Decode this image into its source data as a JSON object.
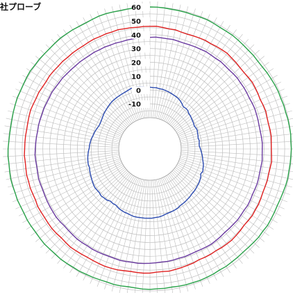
{
  "chart_data": {
    "type": "polar-line",
    "title": "社プローブ",
    "radial_ticks": [
      60,
      50,
      40,
      30,
      20,
      10,
      0,
      -10
    ],
    "radial_range": [
      -20,
      60
    ],
    "angular_divisions": 120,
    "series": [
      {
        "color": "#2aa24a",
        "values": [
          60,
          60,
          59.8,
          59.5,
          59.5,
          59.4,
          59.2,
          59.4,
          59.5,
          59.2,
          58.8,
          58.8,
          59,
          58.7,
          58.4,
          58.2,
          58.3,
          58,
          58.1,
          58.5,
          58.7,
          59,
          59.2,
          59,
          59.3,
          59.2,
          59.6,
          59.7,
          59.9,
          59.6,
          59.8,
          59.6,
          59.5,
          59.3,
          59.4,
          59.2,
          58.8,
          58.5,
          58.3,
          58.5,
          58.7,
          58.9,
          58.5,
          58.7,
          58.4,
          58.1,
          58,
          58.2,
          58.3,
          58.6,
          58.4,
          58.8,
          58.9,
          59.1,
          58.9,
          59,
          58.8,
          58.5,
          58.7,
          58.6,
          58.9,
          58.8,
          58.4,
          58.2,
          58.6,
          58.8,
          58.5,
          58.7,
          59,
          59.1,
          59.5,
          59.4,
          59.7,
          60,
          59.8,
          59.9,
          60.2,
          60,
          59.8,
          60,
          60.1,
          59.8,
          59.9,
          60.3,
          60.1,
          60.4,
          60.6,
          60.3,
          60.1,
          60.4,
          60.2,
          59.8,
          59.6,
          59.5,
          59.6,
          59.9,
          60.1,
          60.4,
          60.2,
          60.3,
          60.6,
          60.8,
          60.4,
          60.5,
          60.2,
          60.1,
          60.3,
          60.5,
          60.2,
          60.1,
          59.7,
          59.6,
          59.9,
          60.3,
          60.2,
          59.9,
          59.6,
          59.8,
          59.9,
          60
        ]
      },
      {
        "color": "#e02020",
        "values": [
          46,
          46.2,
          45.7,
          45.3,
          45.4,
          44.8,
          44.6,
          44.9,
          45.2,
          45.5,
          45.3,
          45.7,
          46,
          46.3,
          45.8,
          45.6,
          45.2,
          45.1,
          45.4,
          45.8,
          45.5,
          45.2,
          44.9,
          45.3,
          45.6,
          45.2,
          45.1,
          45.5,
          45.7,
          45.4,
          45.3,
          45.6,
          46,
          45.5,
          45.2,
          45.4,
          45.1,
          45,
          45.3,
          45.6,
          45.5,
          45.8,
          45.4,
          45.1,
          45.5,
          45.7,
          46,
          45.8,
          45.6,
          45.1,
          45.3,
          45.2,
          45,
          45.6,
          45.8,
          46.1,
          46.4,
          46.8,
          46.5,
          46.6,
          47.1,
          47.3,
          47.2,
          47,
          47.4,
          47.9,
          48.1,
          48.3,
          48.1,
          48,
          47.9,
          48.2,
          48.4,
          48.8,
          48.5,
          48.2,
          48.6,
          48.8,
          48.6,
          48.4,
          48.5,
          48.7,
          48.1,
          48.3,
          48.6,
          48.4,
          48.7,
          48.4,
          48.2,
          48.5,
          48.2,
          48.1,
          48,
          47.8,
          47.9,
          48.1,
          48.3,
          47.9,
          47.6,
          47.7,
          47.2,
          47,
          47.3,
          47.1,
          46.8,
          46.9,
          46.5,
          46.6,
          46.4,
          46.2,
          46.4,
          46.6,
          46.3,
          46.5,
          46.3,
          46.6,
          46.2,
          46.1,
          45.8,
          46
        ]
      },
      {
        "color": "#6a3aa0",
        "values": [
          38,
          38.3,
          38.1,
          38,
          38.2,
          37.9,
          37.7,
          37.9,
          38.1,
          38.2,
          38.6,
          38.4,
          38.3,
          38.7,
          38.4,
          38.3,
          38.6,
          38.8,
          38.5,
          38.6,
          38.4,
          38.2,
          38.5,
          38.7,
          38.5,
          38.4,
          38.2,
          38.3,
          38.6,
          38.9,
          38.7,
          38.8,
          39.1,
          38.8,
          38.7,
          38.9,
          39,
          38.8,
          38.6,
          38.9,
          39.1,
          38.7,
          38.8,
          39,
          38.7,
          38.6,
          38.5,
          38.8,
          39,
          39.3,
          39.1,
          38.9,
          38.7,
          38.9,
          39.2,
          39.1,
          39.4,
          39.7,
          39.5,
          39.8,
          40,
          40.3,
          40.5,
          40.3,
          40.6,
          40.8,
          40.6,
          40.5,
          40.7,
          40.9,
          41,
          40.8,
          41.1,
          41.2,
          41,
          40.8,
          40.7,
          41.1,
          41.3,
          41.1,
          41,
          40.9,
          40.7,
          40.5,
          40.7,
          40.9,
          40.6,
          40.4,
          40.6,
          40.8,
          40.5,
          40.3,
          40.1,
          39.8,
          39.9,
          39.7,
          39.5,
          39.6,
          39.3,
          39.2,
          39.4,
          39,
          38.8,
          38.9,
          38.5,
          38.3,
          38.1,
          38.2,
          38,
          37.9,
          38.1,
          37.8,
          38,
          37.7,
          37.8,
          37.6,
          37.8,
          37.9,
          38,
          38.1
        ]
      },
      {
        "color": "#2a4ab0",
        "values": [
          2,
          1.8,
          1.8,
          1.4,
          1.4,
          1.1,
          0.8,
          0.4,
          -0.1,
          -0.4,
          -0.9,
          -1.6,
          -2.7,
          -3.8,
          -3.4,
          -3.6,
          -4.6,
          -4.8,
          -5.3,
          -5.7,
          -6,
          -6.5,
          -6.1,
          -5.8,
          -6.3,
          -6.5,
          -6.9,
          -6.4,
          -6.7,
          -6.9,
          -6.2,
          -5.6,
          -4.9,
          -4.2,
          -3.7,
          -2.9,
          -2.1,
          -1.7,
          -1,
          -1.7,
          -0.6,
          0,
          0.6,
          0.8,
          1.3,
          1.6,
          1.8,
          2.4,
          2.7,
          3.2,
          3.5,
          3.8,
          4.6,
          5,
          5.3,
          5.5,
          5.9,
          6.5,
          7,
          7.1,
          7.5,
          7.5,
          7.5,
          7.5,
          7.6,
          7.6,
          7.2,
          6.8,
          6.7,
          6.3,
          5.8,
          4.9,
          5.1,
          4.7,
          5.8,
          5.9,
          6.4,
          5.8,
          5.9,
          6.1,
          5.7,
          5.2,
          4.7,
          4.2,
          3.8,
          3.2,
          3.5,
          3.2,
          2.9,
          2.5,
          2,
          1.4,
          1.2,
          0.8,
          0.5,
          -0.2,
          -0.6,
          -1,
          -1.6,
          -2.1,
          -2.1,
          -1.8,
          -1.4,
          -0.8,
          -0.4,
          0,
          0.5,
          0.9,
          1.3,
          1.5,
          1.7,
          1.8,
          2,
          2.2,
          2.6,
          3.1,
          3.5,
          3.2,
          2.8,
          2.4,
          2
        ]
      }
    ]
  }
}
